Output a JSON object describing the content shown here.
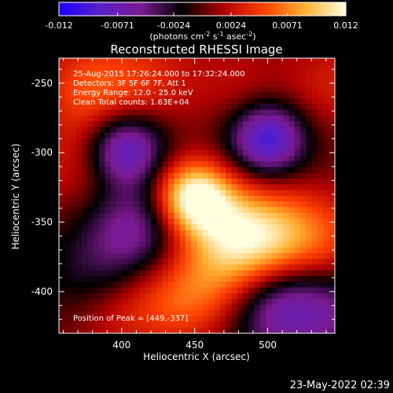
{
  "colorbar": {
    "ticks": [
      "-0.012",
      "-0.0071",
      "-0.0024",
      "0.0024",
      "0.0071",
      "0.012"
    ],
    "tick_values": [
      -0.012,
      -0.0071,
      -0.0024,
      0.0024,
      0.0071,
      0.012
    ],
    "range": [
      -0.012,
      0.012
    ],
    "units_main": "(photons cm",
    "units_sup1": "-2",
    "units_mid": " s",
    "units_sup2": "-1",
    "units_mid2": " asec",
    "units_sup3": "-2",
    "units_end": ")",
    "colormap": [
      "#1a00ff",
      "#5a20c8",
      "#7a1a90",
      "#000000",
      "#b00000",
      "#ff4000",
      "#ffb030",
      "#ffffe0"
    ]
  },
  "plot": {
    "title": "Reconstructed RHESSI Image",
    "xlabel": "Heliocentric X (arcsec)",
    "ylabel": "Heliocentric Y (arcsec)",
    "xticks": [
      "400",
      "450",
      "500"
    ],
    "yticks": [
      "-250",
      "-300",
      "-350",
      "-400"
    ],
    "info_lines": [
      "25-Aug-2015 17:26:24.000 to 17:32:24.000",
      "Detectors: 3F 5F 6F 7F, Att 1",
      "Energy Range: 12.0 - 25.0 keV",
      "Clean     Total counts: 1.63E+04"
    ],
    "peak_text": "Position of Peak = [449,-337]"
  },
  "footer": {
    "timestamp": "23-May-2022 02:39"
  },
  "chart_data": {
    "type": "heatmap",
    "title": "Reconstructed RHESSI Image",
    "xlabel": "Heliocentric X (arcsec)",
    "ylabel": "Heliocentric Y (arcsec)",
    "xlim": [
      357,
      546
    ],
    "ylim": [
      -430,
      -232
    ],
    "colorbar_label": "(photons cm-2 s-1 asec-2)",
    "value_range": [
      -0.012,
      0.012
    ],
    "peak": {
      "x": 449,
      "y": -337
    },
    "features": [
      {
        "x": 449,
        "y": -332,
        "value": 0.012
      },
      {
        "x": 502,
        "y": -361,
        "value": 0.0075
      },
      {
        "x": 470,
        "y": -355,
        "value": 0.006
      },
      {
        "x": 540,
        "y": -362,
        "value": 0.004
      },
      {
        "x": 378,
        "y": -253,
        "value": 0.005
      },
      {
        "x": 420,
        "y": -245,
        "value": 0.003
      },
      {
        "x": 370,
        "y": -308,
        "value": 0.003
      },
      {
        "x": 440,
        "y": -405,
        "value": 0.005
      },
      {
        "x": 475,
        "y": -390,
        "value": 0.004
      },
      {
        "x": 395,
        "y": -415,
        "value": 0.003
      },
      {
        "x": 480,
        "y": -252,
        "value": 0.002
      },
      {
        "x": 545,
        "y": -250,
        "value": 0.003
      },
      {
        "x": 402,
        "y": -298,
        "value": -0.009
      },
      {
        "x": 500,
        "y": -290,
        "value": -0.01
      },
      {
        "x": 410,
        "y": -355,
        "value": -0.006
      },
      {
        "x": 505,
        "y": -410,
        "value": -0.007
      },
      {
        "x": 545,
        "y": -415,
        "value": -0.004
      },
      {
        "x": 380,
        "y": -390,
        "value": -0.003
      }
    ]
  }
}
